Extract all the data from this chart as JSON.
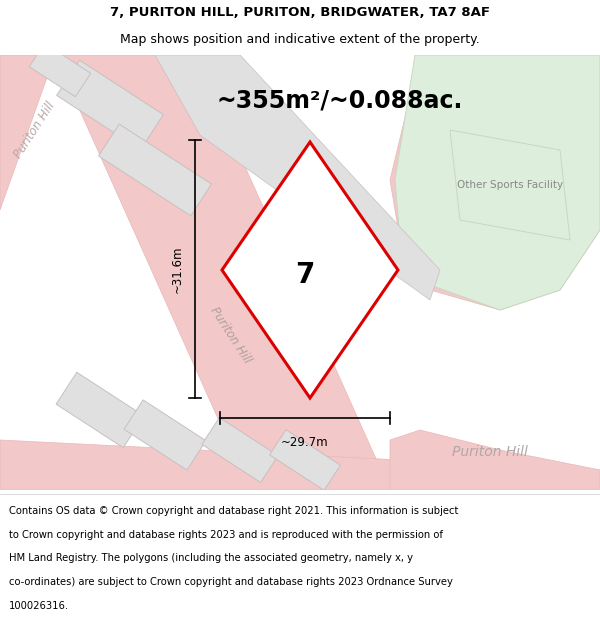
{
  "title_line1": "7, PURITON HILL, PURITON, BRIDGWATER, TA7 8AF",
  "title_line2": "Map shows position and indicative extent of the property.",
  "area_text": "~355m²/~0.088ac.",
  "number_label": "7",
  "dim_width_label": "~29.7m",
  "dim_height_label": "~31.6m",
  "road_label_diagonal": "Puriton Hill",
  "road_label_bottom": "Puriton Hill",
  "road_label_left": "Puriton Hill",
  "sports_label": "Other Sports Facility",
  "footer_lines": [
    "Contains OS data © Crown copyright and database right 2021. This information is subject",
    "to Crown copyright and database rights 2023 and is reproduced with the permission of",
    "HM Land Registry. The polygons (including the associated geometry, namely x, y",
    "co-ordinates) are subject to Crown copyright and database rights 2023 Ordnance Survey",
    "100026316."
  ],
  "map_bg": "#f7f6f2",
  "road_color": "#f2c8c8",
  "road_edge": "#e8b8b8",
  "building_fill": "#e0e0e0",
  "building_edge": "#c8c0c0",
  "highlight_fill": "#ffffff",
  "highlight_stroke": "#dd0000",
  "green_fill": "#ddeedd",
  "green_edge": "#c8d8c0",
  "white": "#ffffff",
  "title_fontsize": 9.5,
  "footer_fontsize": 7.2,
  "area_fontsize": 17,
  "dim_fontsize": 8.5,
  "label_fontsize": 8.5,
  "sports_fontsize": 7.5,
  "num_fontsize": 20
}
